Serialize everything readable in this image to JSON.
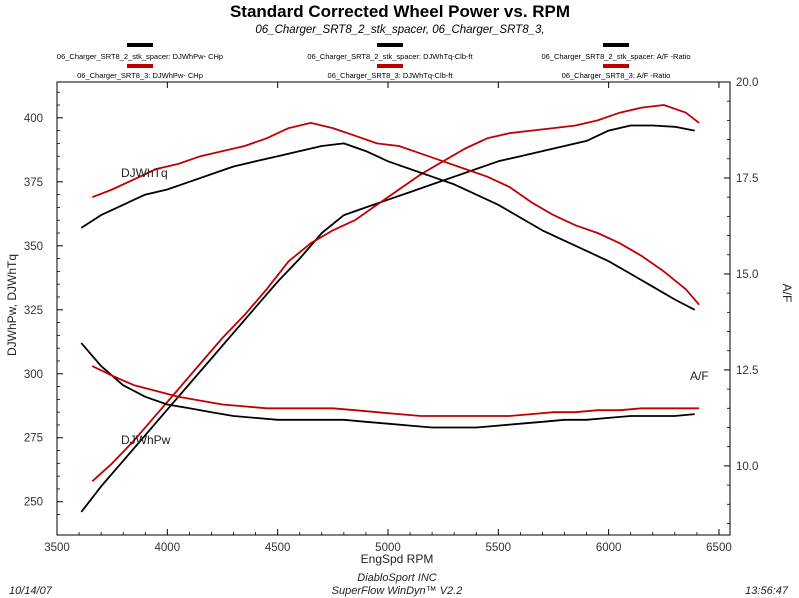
{
  "chart_data": {
    "type": "line",
    "title": "Standard Corrected Wheel Power vs. RPM",
    "subtitle": "06_Charger_SRT8_2_stk_spacer, 06_Charger_SRT8_3,",
    "xlabel": "EngSpd RPM",
    "ylabel_left": "DJWhPw, DJWhTq",
    "ylabel_right": "A/F",
    "xlim": [
      3500,
      6550
    ],
    "ylim_left": [
      237,
      414
    ],
    "ylim_right": [
      8.2,
      20.0
    ],
    "x_ticks": [
      3500,
      4000,
      4500,
      5000,
      5500,
      6000,
      6500
    ],
    "y_left_ticks": [
      250,
      275,
      300,
      325,
      350,
      375,
      400
    ],
    "y_right_ticks": [
      10.0,
      12.5,
      15.0,
      17.5,
      20.0
    ],
    "grid": false,
    "legend": [
      {
        "label": "06_Charger_SRT8_2_stk_spacer: DJWhPw- CHp",
        "color": "#000000"
      },
      {
        "label": "06_Charger_SRT8_3: DJWhPw- CHp",
        "color": "#c00000"
      },
      {
        "label": "06_Charger_SRT8_2_stk_spacer: DJWhTq-Clb-ft",
        "color": "#000000"
      },
      {
        "label": "06_Charger_SRT8_3: DJWhTq-Clb-ft",
        "color": "#c00000"
      },
      {
        "label": "06_Charger_SRT8_2_stk_spacer: A/F -Ratio",
        "color": "#000000"
      },
      {
        "label": "06_Charger_SRT8_3: A/F -Ratio",
        "color": "#c00000"
      }
    ],
    "annotations": [
      {
        "text": "DJWhTq"
      },
      {
        "text": "DJWhPw"
      },
      {
        "text": "A/F"
      }
    ],
    "series": [
      {
        "name": "06_Charger_SRT8_2_stk_spacer: DJWhPw- CHp",
        "color": "#000000",
        "axis": "left",
        "x": [
          3610,
          3700,
          3800,
          3900,
          4000,
          4100,
          4200,
          4300,
          4400,
          4500,
          4600,
          4700,
          4800,
          4900,
          5000,
          5100,
          5200,
          5300,
          5400,
          5500,
          5600,
          5700,
          5800,
          5900,
          6000,
          6100,
          6200,
          6300,
          6390
        ],
        "y": [
          246,
          256,
          266,
          276,
          286,
          296,
          306,
          316,
          326,
          336,
          345,
          355,
          362,
          365,
          368,
          371,
          374,
          377,
          380,
          383,
          385,
          387,
          389,
          391,
          395,
          397,
          397,
          396.5,
          395
        ]
      },
      {
        "name": "06_Charger_SRT8_3: DJWhPw- CHp",
        "color": "#c00000",
        "axis": "left",
        "x": [
          3660,
          3750,
          3850,
          3950,
          4050,
          4150,
          4250,
          4350,
          4450,
          4550,
          4650,
          4750,
          4850,
          4950,
          5050,
          5150,
          5250,
          5350,
          5450,
          5550,
          5650,
          5750,
          5850,
          5950,
          6050,
          6150,
          6250,
          6350,
          6410
        ],
        "y": [
          258,
          265,
          274,
          284,
          294,
          304,
          314,
          323,
          333,
          344,
          351,
          356,
          360,
          366,
          372,
          378,
          383,
          388,
          392,
          394,
          395,
          396,
          397,
          399,
          402,
          404,
          405,
          402,
          398
        ]
      },
      {
        "name": "06_Charger_SRT8_2_stk_spacer: DJWhTq-Clb-ft",
        "color": "#000000",
        "axis": "left",
        "x": [
          3610,
          3700,
          3800,
          3900,
          4000,
          4100,
          4200,
          4300,
          4400,
          4500,
          4600,
          4700,
          4800,
          4900,
          5000,
          5100,
          5200,
          5300,
          5400,
          5500,
          5600,
          5700,
          5800,
          5900,
          6000,
          6100,
          6200,
          6300,
          6390
        ],
        "y": [
          357,
          362,
          366,
          370,
          372,
          375,
          378,
          381,
          383,
          385,
          387,
          389,
          390,
          387,
          383,
          380,
          377,
          374,
          370,
          366,
          361,
          356,
          352,
          348,
          344,
          339,
          334,
          329,
          325
        ]
      },
      {
        "name": "06_Charger_SRT8_3: DJWhTq-Clb-ft",
        "color": "#c00000",
        "axis": "left",
        "x": [
          3660,
          3750,
          3850,
          3950,
          4050,
          4150,
          4250,
          4350,
          4450,
          4550,
          4650,
          4750,
          4850,
          4950,
          5050,
          5150,
          5250,
          5350,
          5450,
          5550,
          5650,
          5750,
          5850,
          5950,
          6050,
          6150,
          6250,
          6350,
          6410
        ],
        "y": [
          369,
          372,
          376,
          380,
          382,
          385,
          387,
          389,
          392,
          396,
          398,
          396,
          393,
          390,
          389,
          386,
          383,
          380,
          377,
          373,
          367,
          362,
          358,
          355,
          351,
          346,
          340,
          333,
          327
        ]
      },
      {
        "name": "06_Charger_SRT8_2_stk_spacer: A/F -Ratio",
        "color": "#000000",
        "axis": "right",
        "x": [
          3610,
          3700,
          3800,
          3900,
          4000,
          4100,
          4200,
          4300,
          4400,
          4500,
          4600,
          4700,
          4800,
          4900,
          5000,
          5100,
          5200,
          5300,
          5400,
          5500,
          5600,
          5700,
          5800,
          5900,
          6000,
          6100,
          6200,
          6300,
          6390
        ],
        "y": [
          13.2,
          12.6,
          12.1,
          11.8,
          11.6,
          11.5,
          11.4,
          11.3,
          11.25,
          11.2,
          11.2,
          11.2,
          11.2,
          11.15,
          11.1,
          11.05,
          11.0,
          11.0,
          11.0,
          11.05,
          11.1,
          11.15,
          11.2,
          11.2,
          11.25,
          11.3,
          11.3,
          11.3,
          11.35
        ]
      },
      {
        "name": "06_Charger_SRT8_3: A/F -Ratio",
        "color": "#c00000",
        "axis": "right",
        "x": [
          3660,
          3750,
          3850,
          3950,
          4050,
          4150,
          4250,
          4350,
          4450,
          4550,
          4650,
          4750,
          4850,
          4950,
          5050,
          5150,
          5250,
          5350,
          5450,
          5550,
          5650,
          5750,
          5850,
          5950,
          6050,
          6150,
          6250,
          6350,
          6410
        ],
        "y": [
          12.6,
          12.35,
          12.1,
          11.95,
          11.8,
          11.7,
          11.6,
          11.55,
          11.5,
          11.5,
          11.5,
          11.5,
          11.45,
          11.4,
          11.35,
          11.3,
          11.3,
          11.3,
          11.3,
          11.3,
          11.35,
          11.4,
          11.4,
          11.45,
          11.45,
          11.5,
          11.5,
          11.5,
          11.5
        ]
      }
    ]
  },
  "footer": {
    "date": "10/14/07",
    "company": "DiabloSport INC",
    "software": "SuperFlow WinDyn™ V2.2",
    "time": "13:56:47"
  }
}
